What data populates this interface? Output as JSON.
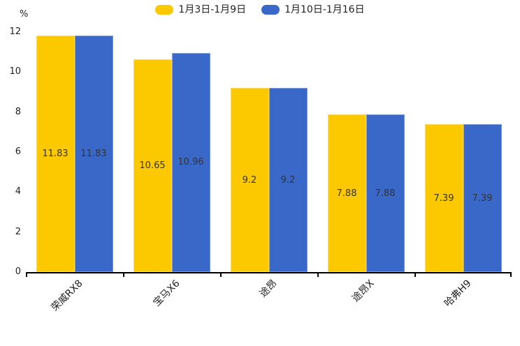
{
  "chart_data": {
    "type": "bar",
    "title": "",
    "xlabel": "",
    "ylabel": "%",
    "categories": [
      "荣威RX8",
      "宝马X6",
      "途昂",
      "途昂X",
      "哈弗H9"
    ],
    "series": [
      {
        "name": "1月3日-1月9日",
        "color": "#FCC800",
        "values": [
          11.83,
          10.65,
          9.2,
          7.88,
          7.39
        ]
      },
      {
        "name": "1月10日-1月16日",
        "color": "#3A68C8",
        "values": [
          11.83,
          10.96,
          9.2,
          7.88,
          7.39
        ]
      }
    ],
    "ylim": [
      0,
      12
    ],
    "y_ticks": [
      0,
      2,
      4,
      6,
      8,
      10,
      12
    ],
    "grid": false,
    "legend_position": "top-center",
    "value_labels": "inside-center",
    "value_label_color": "#333333",
    "axis_color": "#000000",
    "background_color": "#ffffff"
  }
}
